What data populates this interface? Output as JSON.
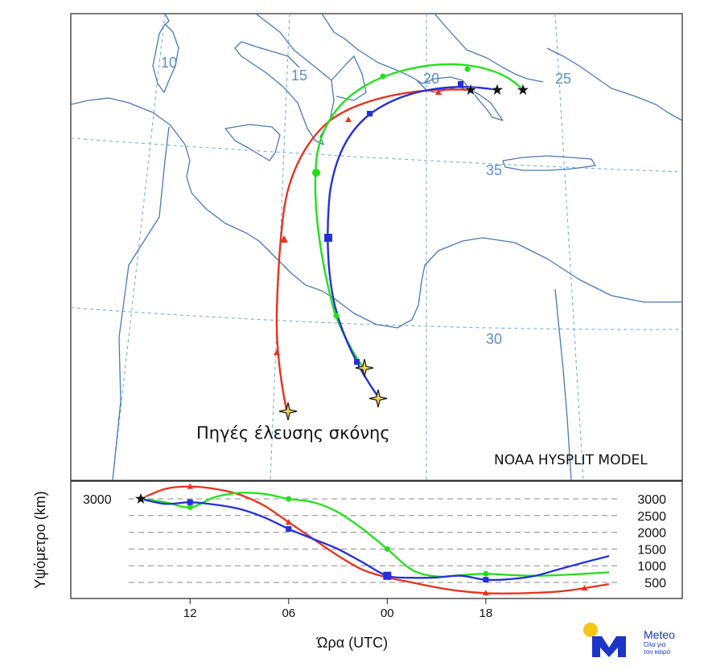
{
  "map": {
    "model_label": "NOAA HYSPLIT MODEL",
    "source_caption": "Πηγές έλευσης σκόνης",
    "longitude_labels": [
      "10",
      "15",
      "20",
      "25"
    ],
    "latitude_labels": [
      "35",
      "30"
    ]
  },
  "colors": {
    "red": "#e8321e",
    "green": "#22e01a",
    "blue": "#2430d8",
    "coast": "#4a78b8",
    "grid": "#6aa6d6",
    "gridtext": "#5a8fc4",
    "source_star": "#f0d060"
  },
  "profile": {
    "y_axis_title": "Υψόμετρο (km)",
    "x_axis_title": "Ώρα (UTC)",
    "start_height_label": "3000"
  },
  "chart_data": {
    "type": "line",
    "title": "",
    "xlabel": "Ώρα (UTC)",
    "ylabel": "Υψόμετρο (km)",
    "x_ticks": [
      "12",
      "06",
      "00",
      "18"
    ],
    "y_ticks": [
      3000,
      2500,
      2000,
      1500,
      1000,
      500
    ],
    "ylim": [
      0,
      3500
    ],
    "x_unit": "hours before arrival",
    "xlim": [
      0,
      57
    ],
    "series": [
      {
        "name": "red",
        "color": "#e8321e",
        "x": [
          0,
          3,
          6,
          9,
          12,
          15,
          18,
          21,
          24,
          27,
          30,
          33,
          36,
          39,
          42,
          45,
          48,
          51,
          54,
          57
        ],
        "values": [
          3000,
          3300,
          3370,
          3300,
          3130,
          2800,
          2300,
          1800,
          1300,
          880,
          650,
          500,
          350,
          240,
          180,
          170,
          190,
          230,
          330,
          450
        ],
        "markers_at": [
          6,
          18,
          30,
          42,
          54
        ]
      },
      {
        "name": "green",
        "color": "#22e01a",
        "x": [
          0,
          3,
          6,
          9,
          12,
          15,
          18,
          21,
          24,
          27,
          30,
          33,
          36,
          39,
          42,
          45,
          48,
          51,
          54,
          57
        ],
        "values": [
          3000,
          2900,
          2750,
          3050,
          3180,
          3150,
          3000,
          2900,
          2600,
          2100,
          1500,
          880,
          680,
          720,
          760,
          720,
          700,
          720,
          760,
          800
        ],
        "markers_at": [
          6,
          18,
          30,
          42
        ]
      },
      {
        "name": "blue",
        "color": "#2430d8",
        "x": [
          0,
          3,
          6,
          9,
          12,
          15,
          18,
          21,
          24,
          27,
          30,
          33,
          36,
          39,
          42,
          45,
          48,
          51,
          54,
          57
        ],
        "values": [
          3000,
          2850,
          2900,
          2830,
          2700,
          2450,
          2100,
          1800,
          1500,
          1100,
          700,
          640,
          650,
          700,
          580,
          600,
          700,
          900,
          1100,
          1290
        ],
        "markers_at": [
          6,
          18,
          30,
          42
        ]
      }
    ]
  },
  "branding": {
    "name": "Meteo",
    "tagline_1": "Όλα για",
    "tagline_2": "τον καιρό"
  }
}
